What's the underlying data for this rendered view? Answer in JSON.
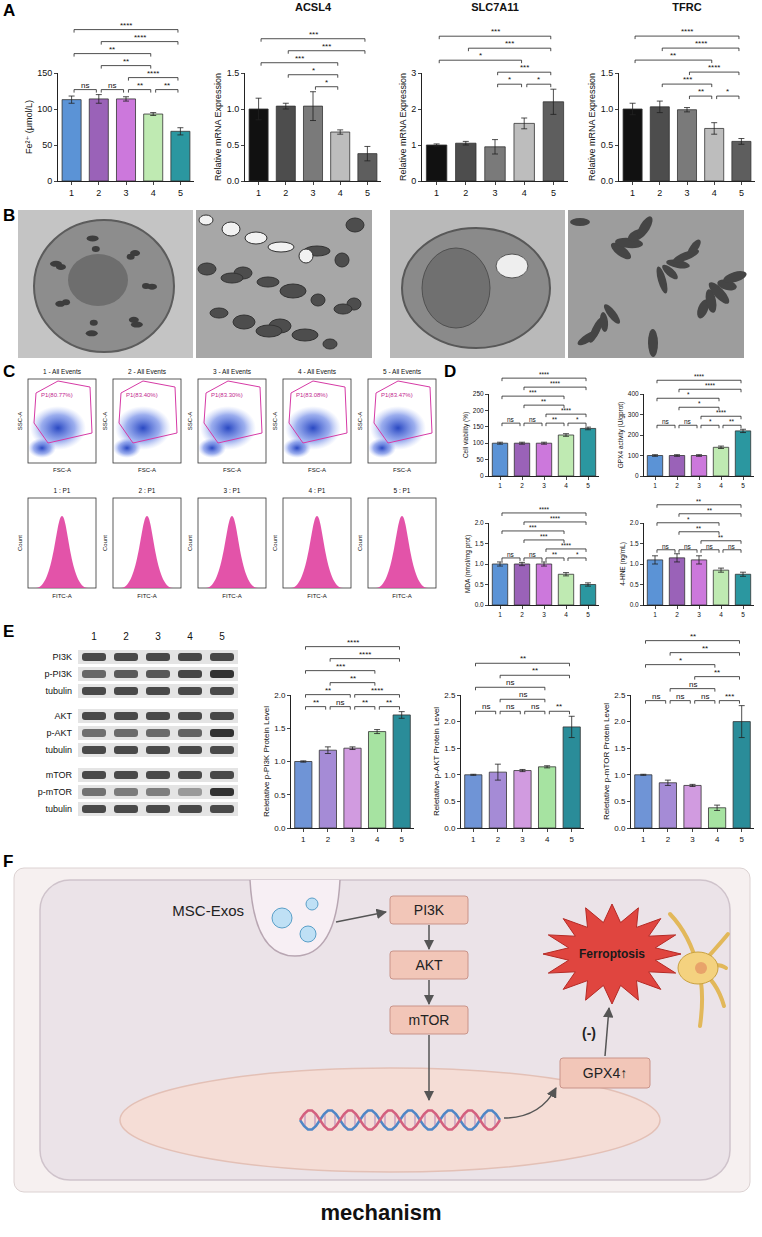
{
  "panel_labels": [
    "A",
    "B",
    "C",
    "D",
    "E",
    "F"
  ],
  "chart_data": [
    {
      "type": "bar",
      "ylabel": "Fe²⁺ (μmol/L)",
      "categories": [
        "1",
        "2",
        "3",
        "4",
        "5"
      ],
      "values": [
        113,
        114,
        114,
        93,
        69
      ],
      "errors": [
        5,
        6,
        3,
        2,
        5
      ],
      "colors": [
        "#5b93d6",
        "#9a62b8",
        "#cc78dc",
        "#bfeab2",
        "#2b97a0"
      ],
      "ylim": [
        0,
        150
      ],
      "yticks": [
        0,
        50,
        100,
        150
      ],
      "brackets": [
        {
          "from": "1",
          "to": "2",
          "label": "ns"
        },
        {
          "from": "2",
          "to": "3",
          "label": "ns"
        },
        {
          "from": "3",
          "to": "4",
          "label": "**"
        },
        {
          "from": "4",
          "to": "5",
          "label": "**"
        },
        {
          "from": "3",
          "to": "5",
          "label": "****"
        },
        {
          "from": "2",
          "to": "4",
          "label": "**"
        },
        {
          "from": "1",
          "to": "4",
          "label": "**"
        },
        {
          "from": "2",
          "to": "5",
          "label": "****"
        },
        {
          "from": "1",
          "to": "5",
          "label": "****"
        }
      ]
    },
    {
      "type": "bar",
      "title": "ACSL4",
      "ylabel": "Relative mRNA Expression",
      "categories": [
        "1",
        "2",
        "3",
        "4",
        "5"
      ],
      "values": [
        1.0,
        1.04,
        1.04,
        0.68,
        0.38
      ],
      "errors": [
        0.15,
        0.04,
        0.2,
        0.03,
        0.1
      ],
      "colors": [
        "#111111",
        "#4d4d4d",
        "#7a7a7a",
        "#bdbdbd",
        "#5e5e5e"
      ],
      "ylim": [
        0,
        1.5
      ],
      "yticks": [
        {
          "value": 0,
          "label": "0.0"
        },
        {
          "value": 0.5,
          "label": "0.5"
        },
        {
          "value": 1,
          "label": "1.0"
        },
        {
          "value": 1.5,
          "label": "1.5"
        }
      ],
      "brackets": [
        {
          "from": "3",
          "to": "4",
          "label": "*"
        },
        {
          "from": "2",
          "to": "4",
          "label": "*"
        },
        {
          "from": "1",
          "to": "4",
          "label": "***"
        },
        {
          "from": "2",
          "to": "5",
          "label": "***"
        },
        {
          "from": "1",
          "to": "5",
          "label": "***"
        }
      ]
    },
    {
      "type": "bar",
      "title": "SLC7A11",
      "ylabel": "Relative mRNA Expression",
      "categories": [
        "1",
        "2",
        "3",
        "4",
        "5"
      ],
      "values": [
        1.0,
        1.05,
        0.95,
        1.6,
        2.2
      ],
      "errors": [
        0.03,
        0.05,
        0.2,
        0.15,
        0.35
      ],
      "colors": [
        "#111111",
        "#4d4d4d",
        "#7a7a7a",
        "#bdbdbd",
        "#5e5e5e"
      ],
      "ylim": [
        0,
        3
      ],
      "yticks": [
        0,
        1,
        2,
        3
      ],
      "brackets": [
        {
          "from": "3",
          "to": "4",
          "label": "*"
        },
        {
          "from": "4",
          "to": "5",
          "label": "*"
        },
        {
          "from": "3",
          "to": "5",
          "label": "***"
        },
        {
          "from": "1",
          "to": "4",
          "label": "*"
        },
        {
          "from": "2",
          "to": "5",
          "label": "***"
        },
        {
          "from": "1",
          "to": "5",
          "label": "***"
        }
      ]
    },
    {
      "type": "bar",
      "title": "TFRC",
      "ylabel": "Relative mRNA Expression",
      "categories": [
        "1",
        "2",
        "3",
        "4",
        "5"
      ],
      "values": [
        1.0,
        1.03,
        0.99,
        0.73,
        0.55
      ],
      "errors": [
        0.08,
        0.08,
        0.03,
        0.08,
        0.04
      ],
      "colors": [
        "#111111",
        "#4d4d4d",
        "#7a7a7a",
        "#bdbdbd",
        "#5e5e5e"
      ],
      "ylim": [
        0,
        1.5
      ],
      "yticks": [
        {
          "value": 0,
          "label": "0.0"
        },
        {
          "value": 0.5,
          "label": "0.5"
        },
        {
          "value": 1,
          "label": "1.0"
        },
        {
          "value": 1.5,
          "label": "1.5"
        }
      ],
      "brackets": [
        {
          "from": "3",
          "to": "4",
          "label": "**"
        },
        {
          "from": "4",
          "to": "5",
          "label": "*"
        },
        {
          "from": "2",
          "to": "4",
          "label": "***"
        },
        {
          "from": "3",
          "to": "5",
          "label": "****"
        },
        {
          "from": "1",
          "to": "4",
          "label": "**"
        },
        {
          "from": "2",
          "to": "5",
          "label": "****"
        },
        {
          "from": "1",
          "to": "5",
          "label": "****"
        }
      ]
    },
    {
      "type": "bar",
      "ylabel": "Cell viability (%)",
      "categories": [
        "1",
        "2",
        "3",
        "4",
        "5"
      ],
      "values": [
        100,
        100,
        100,
        125,
        145
      ],
      "errors": [
        3,
        3,
        3,
        4,
        4
      ],
      "colors": [
        "#5b93d6",
        "#9a62b8",
        "#cc78dc",
        "#bfeab2",
        "#2b97a0"
      ],
      "ylim": [
        0,
        250
      ],
      "yticks": [
        0,
        50,
        100,
        150,
        200,
        250
      ],
      "brackets": [
        {
          "from": "1",
          "to": "2",
          "label": "ns"
        },
        {
          "from": "2",
          "to": "3",
          "label": "ns"
        },
        {
          "from": "3",
          "to": "4",
          "label": "**"
        },
        {
          "from": "4",
          "to": "5",
          "label": "*"
        },
        {
          "from": "3",
          "to": "5",
          "label": "****"
        },
        {
          "from": "2",
          "to": "4",
          "label": "**"
        },
        {
          "from": "1",
          "to": "4",
          "label": "***"
        },
        {
          "from": "2",
          "to": "5",
          "label": "****"
        },
        {
          "from": "1",
          "to": "5",
          "label": "****"
        }
      ]
    },
    {
      "type": "bar",
      "ylabel": "GPX4 activity (U/gprot)",
      "categories": [
        "1",
        "2",
        "3",
        "4",
        "5"
      ],
      "values": [
        100,
        100,
        100,
        140,
        220
      ],
      "errors": [
        4,
        4,
        4,
        6,
        8
      ],
      "colors": [
        "#5b93d6",
        "#9a62b8",
        "#cc78dc",
        "#bfeab2",
        "#2b97a0"
      ],
      "ylim": [
        0,
        400
      ],
      "yticks": [
        0,
        100,
        200,
        300,
        400
      ],
      "brackets": [
        {
          "from": "1",
          "to": "2",
          "label": "ns"
        },
        {
          "from": "2",
          "to": "3",
          "label": "ns"
        },
        {
          "from": "3",
          "to": "4",
          "label": "*"
        },
        {
          "from": "4",
          "to": "5",
          "label": "**"
        },
        {
          "from": "3",
          "to": "5",
          "label": "****"
        },
        {
          "from": "2",
          "to": "4",
          "label": "*"
        },
        {
          "from": "1",
          "to": "4",
          "label": "*"
        },
        {
          "from": "2",
          "to": "5",
          "label": "****"
        },
        {
          "from": "1",
          "to": "5",
          "label": "****"
        }
      ]
    },
    {
      "type": "bar",
      "ylabel": "MDA (nmol/mg prot)",
      "categories": [
        "1",
        "2",
        "3",
        "4",
        "5"
      ],
      "values": [
        1.0,
        1.0,
        1.0,
        0.75,
        0.5
      ],
      "errors": [
        0.05,
        0.04,
        0.05,
        0.04,
        0.04
      ],
      "colors": [
        "#5b93d6",
        "#9a62b8",
        "#cc78dc",
        "#bfeab2",
        "#2b97a0"
      ],
      "ylim": [
        0,
        2
      ],
      "yticks": [
        {
          "value": 0,
          "label": "0.0"
        },
        {
          "value": 0.5,
          "label": "0.5"
        },
        {
          "value": 1,
          "label": "1.0"
        },
        {
          "value": 1.5,
          "label": "1.5"
        },
        {
          "value": 2,
          "label": "2.0"
        }
      ],
      "brackets": [
        {
          "from": "1",
          "to": "2",
          "label": "ns"
        },
        {
          "from": "2",
          "to": "3",
          "label": "ns"
        },
        {
          "from": "3",
          "to": "4",
          "label": "**"
        },
        {
          "from": "4",
          "to": "5",
          "label": "*"
        },
        {
          "from": "3",
          "to": "5",
          "label": "****"
        },
        {
          "from": "2",
          "to": "4",
          "label": "***"
        },
        {
          "from": "1",
          "to": "4",
          "label": "***"
        },
        {
          "from": "2",
          "to": "5",
          "label": "****"
        },
        {
          "from": "1",
          "to": "5",
          "label": "****"
        }
      ]
    },
    {
      "type": "bar",
      "ylabel": "4-HNE (ng/mL)",
      "categories": [
        "1",
        "2",
        "3",
        "4",
        "5"
      ],
      "values": [
        1.1,
        1.15,
        1.1,
        0.85,
        0.75
      ],
      "errors": [
        0.1,
        0.1,
        0.1,
        0.05,
        0.05
      ],
      "colors": [
        "#5b93d6",
        "#9a62b8",
        "#cc78dc",
        "#bfeab2",
        "#2b97a0"
      ],
      "ylim": [
        0,
        2
      ],
      "yticks": [
        {
          "value": 0,
          "label": "0.0"
        },
        {
          "value": 0.5,
          "label": "0.5"
        },
        {
          "value": 1,
          "label": "1.0"
        },
        {
          "value": 1.5,
          "label": "1.5"
        },
        {
          "value": 2,
          "label": "2.0"
        }
      ],
      "brackets": [
        {
          "from": "1",
          "to": "2",
          "label": "ns"
        },
        {
          "from": "2",
          "to": "3",
          "label": "ns"
        },
        {
          "from": "3",
          "to": "4",
          "label": "ns"
        },
        {
          "from": "4",
          "to": "5",
          "label": "ns"
        },
        {
          "from": "3",
          "to": "5",
          "label": "**"
        },
        {
          "from": "2",
          "to": "4",
          "label": "**"
        },
        {
          "from": "1",
          "to": "4",
          "label": "*"
        },
        {
          "from": "2",
          "to": "5",
          "label": "**"
        },
        {
          "from": "1",
          "to": "5",
          "label": "**"
        }
      ]
    },
    {
      "type": "bar",
      "ylabel": "Reletative p-PI3K Protein Level",
      "categories": [
        "1",
        "2",
        "3",
        "4",
        "5"
      ],
      "values": [
        1.0,
        1.17,
        1.2,
        1.45,
        1.7
      ],
      "errors": [
        0.01,
        0.05,
        0.02,
        0.03,
        0.05
      ],
      "colors": [
        "#6f94d6",
        "#a58bd6",
        "#d19be0",
        "#a6e3a1",
        "#2a8c99"
      ],
      "ylim": [
        0,
        2
      ],
      "yticks": [
        {
          "value": 0,
          "label": "0.0"
        },
        {
          "value": 0.5,
          "label": "0.5"
        },
        {
          "value": 1,
          "label": "1.0"
        },
        {
          "value": 1.5,
          "label": "1.5"
        },
        {
          "value": 2,
          "label": "2.0"
        }
      ],
      "brackets": [
        {
          "from": "1",
          "to": "2",
          "label": "**"
        },
        {
          "from": "2",
          "to": "3",
          "label": "ns"
        },
        {
          "from": "3",
          "to": "4",
          "label": "**"
        },
        {
          "from": "4",
          "to": "5",
          "label": "**"
        },
        {
          "from": "1",
          "to": "3",
          "label": "**"
        },
        {
          "from": "3",
          "to": "5",
          "label": "****"
        },
        {
          "from": "2",
          "to": "4",
          "label": "**"
        },
        {
          "from": "1",
          "to": "4",
          "label": "***"
        },
        {
          "from": "2",
          "to": "5",
          "label": "****"
        },
        {
          "from": "1",
          "to": "5",
          "label": "****"
        }
      ]
    },
    {
      "type": "bar",
      "ylabel": "Reletative p-AKT Protein Level",
      "categories": [
        "1",
        "2",
        "3",
        "4",
        "5"
      ],
      "values": [
        1.0,
        1.05,
        1.08,
        1.15,
        1.9
      ],
      "errors": [
        0.01,
        0.15,
        0.02,
        0.02,
        0.2
      ],
      "colors": [
        "#6f94d6",
        "#a58bd6",
        "#d19be0",
        "#a6e3a1",
        "#2a8c99"
      ],
      "ylim": [
        0,
        2.5
      ],
      "yticks": [
        {
          "value": 0,
          "label": "0.0"
        },
        {
          "value": 0.5,
          "label": "0.5"
        },
        {
          "value": 1,
          "label": "1.0"
        },
        {
          "value": 1.5,
          "label": "1.5"
        },
        {
          "value": 2,
          "label": "2.0"
        },
        {
          "value": 2.5,
          "label": "2.5"
        }
      ],
      "brackets": [
        {
          "from": "1",
          "to": "2",
          "label": "ns"
        },
        {
          "from": "2",
          "to": "3",
          "label": "ns"
        },
        {
          "from": "3",
          "to": "4",
          "label": "ns"
        },
        {
          "from": "4",
          "to": "5",
          "label": "**"
        },
        {
          "from": "2",
          "to": "4",
          "label": "ns"
        },
        {
          "from": "1",
          "to": "4",
          "label": "ns"
        },
        {
          "from": "2",
          "to": "5",
          "label": "**"
        },
        {
          "from": "1",
          "to": "5",
          "label": "**"
        }
      ]
    },
    {
      "type": "bar",
      "ylabel": "Reletative p-mTOR Protein Level",
      "categories": [
        "1",
        "2",
        "3",
        "4",
        "5"
      ],
      "values": [
        1.0,
        0.85,
        0.8,
        0.38,
        2.0
      ],
      "errors": [
        0.01,
        0.05,
        0.02,
        0.05,
        0.3
      ],
      "colors": [
        "#6f94d6",
        "#a58bd6",
        "#d19be0",
        "#a6e3a1",
        "#2a8c99"
      ],
      "ylim": [
        0,
        2.5
      ],
      "yticks": [
        {
          "value": 0,
          "label": "0.0"
        },
        {
          "value": 0.5,
          "label": "0.5"
        },
        {
          "value": 1,
          "label": "1.0"
        },
        {
          "value": 1.5,
          "label": "1.5"
        },
        {
          "value": 2,
          "label": "2.0"
        },
        {
          "value": 2.5,
          "label": "2.5"
        }
      ],
      "brackets": [
        {
          "from": "1",
          "to": "2",
          "label": "ns"
        },
        {
          "from": "2",
          "to": "3",
          "label": "ns"
        },
        {
          "from": "3",
          "to": "4",
          "label": "ns"
        },
        {
          "from": "4",
          "to": "5",
          "label": "***"
        },
        {
          "from": "2",
          "to": "4",
          "label": "ns"
        },
        {
          "from": "3",
          "to": "5",
          "label": "**"
        },
        {
          "from": "1",
          "to": "4",
          "label": "*"
        },
        {
          "from": "2",
          "to": "5",
          "label": "**"
        },
        {
          "from": "1",
          "to": "5",
          "label": "**"
        }
      ]
    }
  ],
  "flow_cytometry": {
    "scatter_titles": [
      "1 - All Events",
      "2 - All Events",
      "3 - All Events",
      "4 - All Events",
      "5 - All Events"
    ],
    "gate_labels": [
      "P1(80.77%)",
      "P1(83.40%)",
      "P1(83.30%)",
      "P1(83.08%)",
      "P1(83.47%)"
    ],
    "scatter_x_label": "FSC-A",
    "scatter_y_label": "SSC-A",
    "histogram_titles": [
      "1 : P1",
      "2 : P1",
      "3 : P1",
      "4 : P1",
      "5 : P1"
    ],
    "histogram_x_label": "FITC-A",
    "histogram_y_label": "Count"
  },
  "western_blot": {
    "lanes": [
      "1",
      "2",
      "3",
      "4",
      "5"
    ],
    "groups": [
      [
        "PI3K",
        "p-PI3K",
        "tubulin"
      ],
      [
        "AKT",
        "p-AKT",
        "tubulin"
      ],
      [
        "mTOR",
        "p-mTOR",
        "tubulin"
      ]
    ]
  },
  "mechanism": {
    "source": "MSC-Exos",
    "pathway": [
      "PI3K",
      "AKT",
      "mTOR"
    ],
    "target": "GPX4↑",
    "inhibition": "(-)",
    "outcome": "Ferroptosis",
    "caption": "mechanism"
  }
}
